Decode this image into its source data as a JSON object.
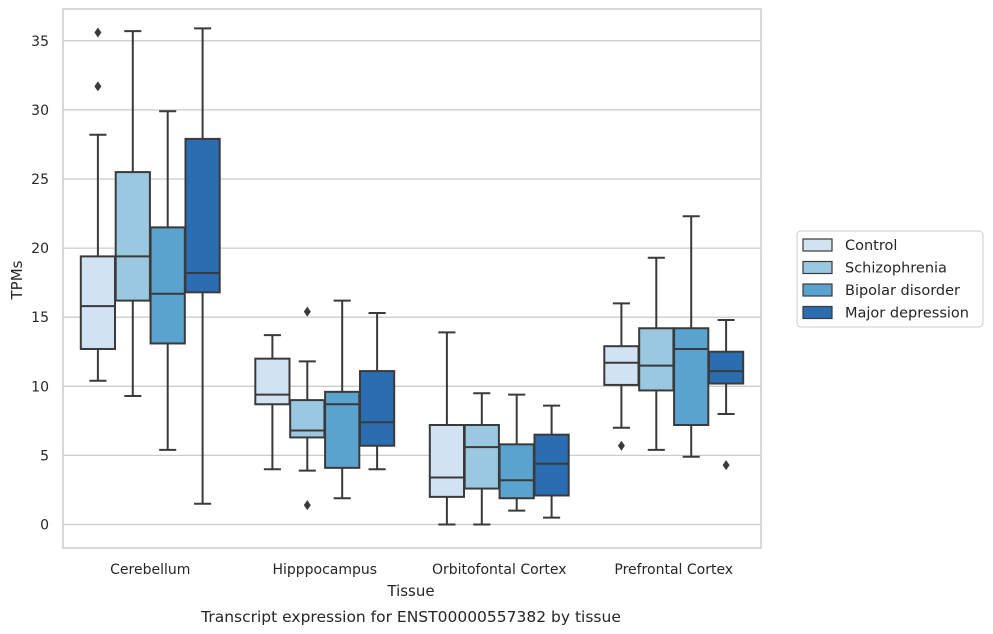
{
  "chart_data": {
    "type": "box",
    "xlabel": "Tissue",
    "ylabel": "TPMs",
    "caption": "Transcript expression for ENST00000557382 by tissue",
    "ylim": [
      -1.7,
      37.3
    ],
    "yticks": [
      0,
      5,
      10,
      15,
      20,
      25,
      30,
      35
    ],
    "grid": "horizontal",
    "legend_position": "right",
    "categories": [
      "Cerebellum",
      "Hipppocampus",
      "Orbitofontal Cortex",
      "Prefrontal Cortex"
    ],
    "series": [
      {
        "name": "Control",
        "color": "#d1e2f2",
        "boxes": [
          {
            "whislo": 10.4,
            "q1": 12.7,
            "med": 15.8,
            "q3": 19.4,
            "whishi": 28.2,
            "fliers": [
              31.7,
              35.6
            ]
          },
          {
            "whislo": 4.0,
            "q1": 8.7,
            "med": 9.4,
            "q3": 12.0,
            "whishi": 13.7,
            "fliers": []
          },
          {
            "whislo": 0.0,
            "q1": 2.0,
            "med": 3.4,
            "q3": 7.2,
            "whishi": 13.9,
            "fliers": []
          },
          {
            "whislo": 7.0,
            "q1": 10.1,
            "med": 11.7,
            "q3": 12.9,
            "whishi": 16.0,
            "fliers": [
              5.7
            ]
          }
        ]
      },
      {
        "name": "Schizophrenia",
        "color": "#9ac8e0",
        "boxes": [
          {
            "whislo": 9.3,
            "q1": 16.2,
            "med": 19.4,
            "q3": 25.5,
            "whishi": 35.7,
            "fliers": []
          },
          {
            "whislo": 3.9,
            "q1": 6.3,
            "med": 6.8,
            "q3": 9.0,
            "whishi": 11.8,
            "fliers": [
              15.4,
              1.4
            ]
          },
          {
            "whislo": 0.0,
            "q1": 2.6,
            "med": 5.6,
            "q3": 7.2,
            "whishi": 9.5,
            "fliers": []
          },
          {
            "whislo": 5.4,
            "q1": 9.7,
            "med": 11.5,
            "q3": 14.2,
            "whishi": 19.3,
            "fliers": []
          }
        ]
      },
      {
        "name": "Bipolar disorder",
        "color": "#5ba3cf",
        "boxes": [
          {
            "whislo": 5.4,
            "q1": 13.1,
            "med": 16.7,
            "q3": 21.5,
            "whishi": 29.9,
            "fliers": []
          },
          {
            "whislo": 1.9,
            "q1": 4.1,
            "med": 8.7,
            "q3": 9.6,
            "whishi": 16.2,
            "fliers": []
          },
          {
            "whislo": 1.0,
            "q1": 1.9,
            "med": 3.2,
            "q3": 5.8,
            "whishi": 9.4,
            "fliers": []
          },
          {
            "whislo": 4.9,
            "q1": 7.2,
            "med": 12.7,
            "q3": 14.2,
            "whishi": 22.3,
            "fliers": []
          }
        ]
      },
      {
        "name": "Major depression",
        "color": "#2a6eb1",
        "boxes": [
          {
            "whislo": 1.5,
            "q1": 16.8,
            "med": 18.2,
            "q3": 27.9,
            "whishi": 35.9,
            "fliers": []
          },
          {
            "whislo": 4.0,
            "q1": 5.7,
            "med": 7.4,
            "q3": 11.1,
            "whishi": 15.3,
            "fliers": []
          },
          {
            "whislo": 0.5,
            "q1": 2.1,
            "med": 4.4,
            "q3": 6.5,
            "whishi": 8.6,
            "fliers": []
          },
          {
            "whislo": 8.0,
            "q1": 10.2,
            "med": 11.1,
            "q3": 12.5,
            "whishi": 14.8,
            "fliers": [
              4.3
            ]
          }
        ]
      }
    ]
  }
}
